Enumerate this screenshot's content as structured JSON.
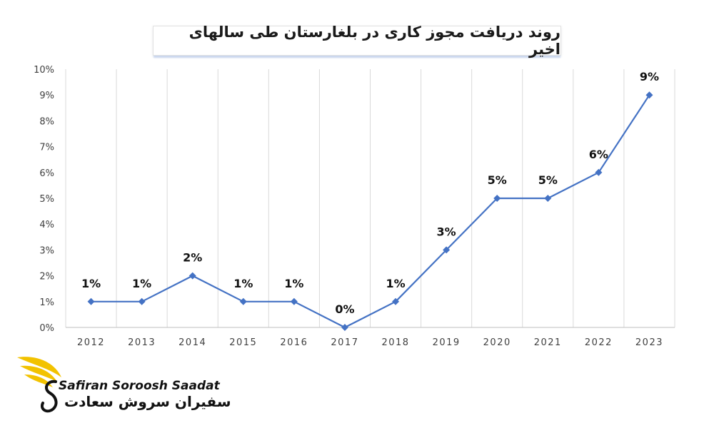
{
  "chart_data": {
    "type": "line",
    "title": "روند دریافت مجوز کاری در بلغارستان طی سالهای اخیر",
    "categories": [
      "2012",
      "2013",
      "2014",
      "2015",
      "2016",
      "2017",
      "2018",
      "2019",
      "2020",
      "2021",
      "2022",
      "2023"
    ],
    "series": [
      {
        "values": [
          1,
          1,
          2,
          1,
          1,
          0,
          1,
          3,
          5,
          5,
          6,
          9
        ],
        "data_labels": [
          "1%",
          "1%",
          "2%",
          "1%",
          "1%",
          "0%",
          "1%",
          "3%",
          "5%",
          "5%",
          "6%",
          "9%"
        ]
      }
    ],
    "y_ticks": [
      "0%",
      "1%",
      "2%",
      "3%",
      "4%",
      "5%",
      "6%",
      "7%",
      "8%",
      "9%",
      "10%"
    ],
    "ylim": [
      0,
      10
    ],
    "xlabel": "",
    "ylabel": "",
    "grid": "vertical",
    "line_color": "#4472C4",
    "marker": "diamond"
  },
  "logo": {
    "name_en": "Safiran Soroosh Saadat",
    "name_fa": "سفیران سروش سعادت",
    "accent_color": "#F2C200"
  }
}
